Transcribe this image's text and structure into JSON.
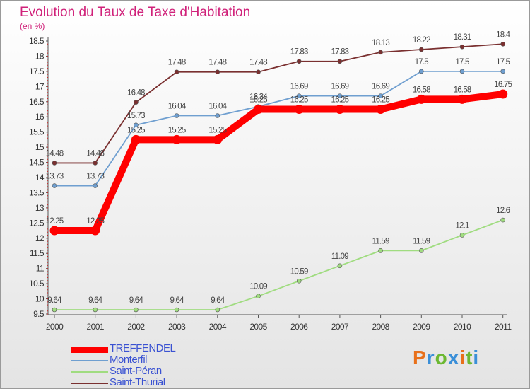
{
  "title": "Evolution du Taux de Taxe d'Habitation",
  "subtitle": "(en %)",
  "logo": {
    "text": "Proxiti",
    "colors": [
      "#e8701a",
      "#3a8fd8",
      "#6cb832",
      "#3a8fd8",
      "#e8701a",
      "#6cb832",
      "#3a8fd8"
    ]
  },
  "chart_data": {
    "type": "line",
    "x": [
      "2000",
      "2001",
      "2002",
      "2003",
      "2004",
      "2005",
      "2006",
      "2007",
      "2008",
      "2009",
      "2010",
      "2011"
    ],
    "ylim": [
      9.5,
      18.5
    ],
    "yticks": [
      "9.5",
      "10",
      "10.5",
      "11",
      "11.5",
      "12",
      "12.5",
      "13",
      "13.5",
      "14",
      "14.5",
      "15",
      "15.5",
      "16",
      "16.5",
      "17",
      "17.5",
      "18",
      "18.5"
    ],
    "grid": false,
    "legend_position": "bottom-left",
    "series": [
      {
        "name": "TREFFENDEL",
        "color": "#ff0000",
        "values": [
          12.25,
          12.25,
          15.25,
          15.25,
          15.25,
          16.25,
          16.25,
          16.25,
          16.25,
          16.58,
          16.58,
          16.75
        ],
        "labels": [
          "12.25",
          "12.25",
          "15.25",
          "15.25",
          "15.25",
          "16.25",
          "16.25",
          "16.25",
          "16.25",
          "16.58",
          "16.58",
          "16.75"
        ]
      },
      {
        "name": "Monterfil",
        "color": "#6f9fd0",
        "values": [
          13.73,
          13.73,
          15.73,
          16.04,
          16.04,
          16.34,
          16.69,
          16.69,
          16.69,
          17.5,
          17.5,
          17.5
        ],
        "labels": [
          "13.73",
          "13.73",
          "15.73",
          "16.04",
          "16.04",
          "16.34",
          "16.69",
          "16.69",
          "16.69",
          "17.5",
          "17.5",
          "17.5"
        ]
      },
      {
        "name": "Saint-Péran",
        "color": "#a0dc80",
        "values": [
          9.64,
          9.64,
          9.64,
          9.64,
          9.64,
          10.09,
          10.59,
          11.09,
          11.59,
          11.59,
          12.1,
          12.6
        ],
        "labels": [
          "9.64",
          "9.64",
          "9.64",
          "9.64",
          "9.64",
          "10.09",
          "10.59",
          "11.09",
          "11.59",
          "11.59",
          "12.1",
          "12.6"
        ]
      },
      {
        "name": "Saint-Thurial",
        "color": "#7a3030",
        "values": [
          14.48,
          14.48,
          16.48,
          17.48,
          17.48,
          17.48,
          17.83,
          17.83,
          18.13,
          18.22,
          18.31,
          18.4
        ],
        "labels": [
          "14.48",
          "14.48",
          "16.48",
          "17.48",
          "17.48",
          "17.48",
          "17.83",
          "17.83",
          "18.13",
          "18.22",
          "18.31",
          "18.4"
        ]
      }
    ]
  }
}
